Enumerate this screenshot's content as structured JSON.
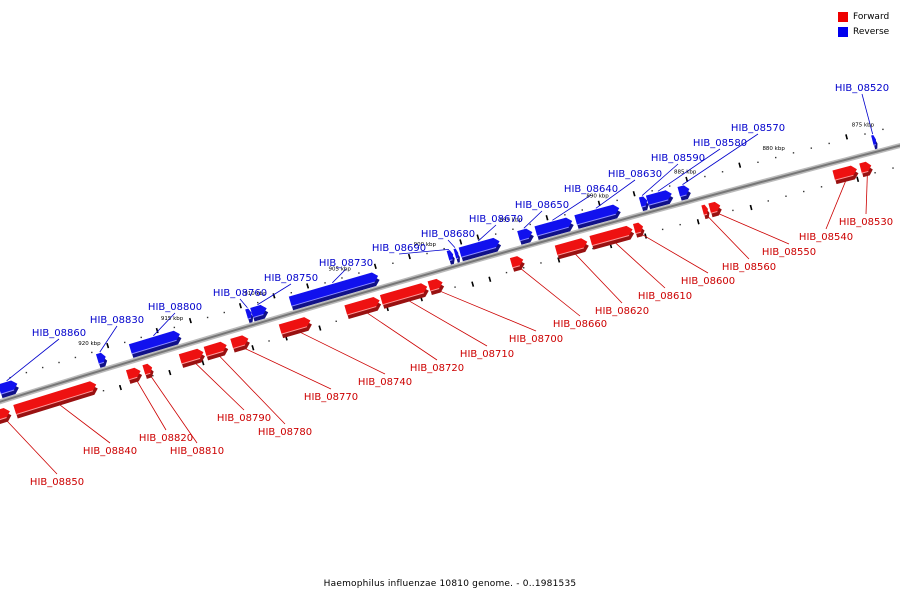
{
  "legend": {
    "forward_label": "Forward",
    "reverse_label": "Reverse"
  },
  "colors": {
    "forward": "#ee1111",
    "reverse": "#1111ee",
    "forward_label": "#cc0000",
    "reverse_label": "#0000cc",
    "backbone": "#888888"
  },
  "caption": "Haemophilus influenzae 10810 genome. - 0..1981535",
  "scale": {
    "start_kbp": 920,
    "end_kbp": 875,
    "tick_labels": [
      "920 kbp",
      "915 kbp",
      "910 kbp",
      "905 kbp",
      "900 kbp",
      "895 kbp",
      "890 kbp",
      "885 kbp",
      "880 kbp",
      "875 kbp"
    ]
  },
  "genes": [
    {
      "name": "HIB_08520",
      "strand": "reverse",
      "start_kbp": 874.7,
      "end_kbp": 874.5
    },
    {
      "name": "HIB_08530",
      "strand": "forward",
      "start_kbp": 875.7,
      "end_kbp": 875.1
    },
    {
      "name": "HIB_08540",
      "strand": "forward",
      "start_kbp": 877.2,
      "end_kbp": 875.9
    },
    {
      "name": "HIB_08550",
      "strand": "forward",
      "start_kbp": 884.2,
      "end_kbp": 883.6
    },
    {
      "name": "HIB_08560",
      "strand": "forward",
      "start_kbp": 884.6,
      "end_kbp": 884.3
    },
    {
      "name": "HIB_08570",
      "strand": "reverse",
      "start_kbp": 885.6,
      "end_kbp": 885.0
    },
    {
      "name": "HIB_08580",
      "strand": "reverse",
      "start_kbp": 887.4,
      "end_kbp": 886.0
    },
    {
      "name": "HIB_08590",
      "strand": "reverse",
      "start_kbp": 887.8,
      "end_kbp": 887.4
    },
    {
      "name": "HIB_08600",
      "strand": "forward",
      "start_kbp": 888.5,
      "end_kbp": 888.0
    },
    {
      "name": "HIB_08610",
      "strand": "forward",
      "start_kbp": 891.0,
      "end_kbp": 888.6
    },
    {
      "name": "HIB_08620",
      "strand": "forward",
      "start_kbp": 893.0,
      "end_kbp": 891.2
    },
    {
      "name": "HIB_08630",
      "strand": "reverse",
      "start_kbp": 891.5,
      "end_kbp": 889.0
    },
    {
      "name": "HIB_08640",
      "strand": "reverse",
      "start_kbp": 893.8,
      "end_kbp": 891.7
    },
    {
      "name": "HIB_08650",
      "strand": "reverse",
      "start_kbp": 894.8,
      "end_kbp": 894.0
    },
    {
      "name": "HIB_08660",
      "strand": "forward",
      "start_kbp": 895.6,
      "end_kbp": 894.9
    },
    {
      "name": "HIB_08670",
      "strand": "reverse",
      "start_kbp": 898.2,
      "end_kbp": 895.9
    },
    {
      "name": "HIB_08680",
      "strand": "reverse",
      "start_kbp": 898.5,
      "end_kbp": 898.3
    },
    {
      "name": "HIB_08690",
      "strand": "reverse",
      "start_kbp": 898.9,
      "end_kbp": 898.6
    },
    {
      "name": "HIB_08700",
      "strand": "forward",
      "start_kbp": 900.4,
      "end_kbp": 899.6
    },
    {
      "name": "HIB_08710",
      "strand": "forward",
      "start_kbp": 903.2,
      "end_kbp": 900.5
    },
    {
      "name": "HIB_08720",
      "strand": "forward",
      "start_kbp": 905.3,
      "end_kbp": 903.3
    },
    {
      "name": "HIB_08730",
      "strand": "reverse",
      "start_kbp": 908.2,
      "end_kbp": 903.0
    },
    {
      "name": "HIB_08740",
      "strand": "forward",
      "start_kbp": 909.2,
      "end_kbp": 907.4
    },
    {
      "name": "HIB_08750",
      "strand": "reverse",
      "start_kbp": 910.5,
      "end_kbp": 909.6
    },
    {
      "name": "HIB_08760",
      "strand": "reverse",
      "start_kbp": 910.8,
      "end_kbp": 910.5
    },
    {
      "name": "HIB_08770",
      "strand": "forward",
      "start_kbp": 912.1,
      "end_kbp": 911.1
    },
    {
      "name": "HIB_08780",
      "strand": "forward",
      "start_kbp": 913.7,
      "end_kbp": 912.4
    },
    {
      "name": "HIB_08790",
      "strand": "forward",
      "start_kbp": 915.2,
      "end_kbp": 913.8
    },
    {
      "name": "HIB_08800",
      "strand": "reverse",
      "start_kbp": 917.8,
      "end_kbp": 914.8
    },
    {
      "name": "HIB_08810",
      "strand": "forward",
      "start_kbp": 917.4,
      "end_kbp": 916.9
    },
    {
      "name": "HIB_08820",
      "strand": "forward",
      "start_kbp": 918.4,
      "end_kbp": 917.6
    },
    {
      "name": "HIB_08830",
      "strand": "reverse",
      "start_kbp": 919.8,
      "end_kbp": 919.3
    },
    {
      "name": "HIB_08840",
      "strand": "forward",
      "start_kbp": 925.3,
      "end_kbp": 920.3
    },
    {
      "name": "HIB_08850",
      "strand": "forward",
      "start_kbp": 926.4,
      "end_kbp": 925.6
    },
    {
      "name": "HIB_08860",
      "strand": "reverse",
      "start_kbp": 925.8,
      "end_kbp": 924.7
    }
  ]
}
